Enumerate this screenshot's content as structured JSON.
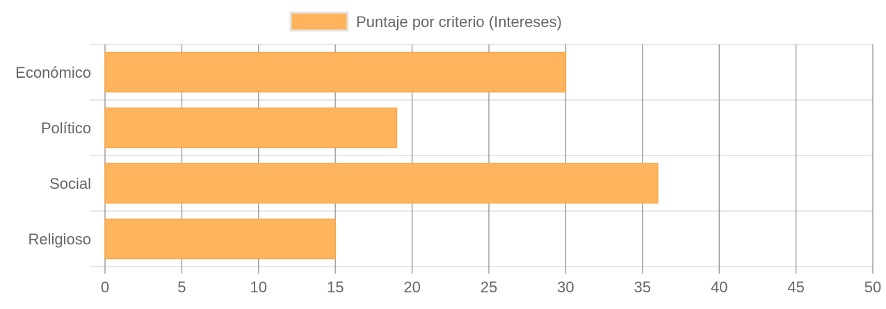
{
  "colors": {
    "bar_fill": "#fdb45c",
    "bar_stroke": "#f7a84d",
    "grid": "#dedede",
    "grid_x": "#a0a0a0",
    "axis_text": "#666666",
    "legend_text": "#666666"
  },
  "chart_data": {
    "type": "bar",
    "orientation": "horizontal",
    "categories": [
      "Económico",
      "Político",
      "Social",
      "Religioso"
    ],
    "series": [
      {
        "name": "Puntaje por criterio (Intereses)",
        "values": [
          30,
          19,
          36,
          15
        ]
      }
    ],
    "xlim": [
      0,
      50
    ],
    "xticks": [
      0,
      5,
      10,
      15,
      20,
      25,
      30,
      35,
      40,
      45,
      50
    ],
    "grid": true,
    "legend_position": "top-center"
  }
}
